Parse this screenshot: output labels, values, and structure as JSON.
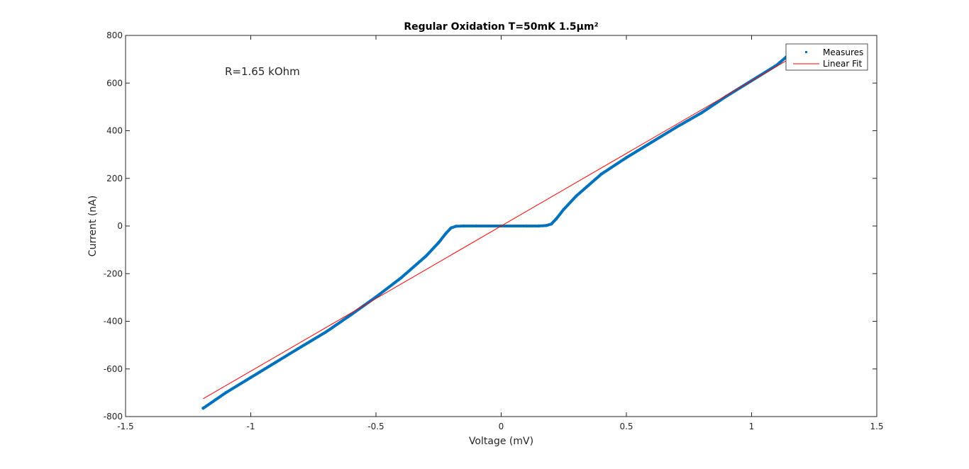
{
  "chart_data": {
    "type": "scatter",
    "title": "Regular Oxidation T=50mK 1.5µm²",
    "xlabel": "Voltage (mV)",
    "ylabel": "Current (nA)",
    "xlim": [
      -1.5,
      1.5
    ],
    "ylim": [
      -800,
      800
    ],
    "xticks": [
      -1.5,
      -1,
      -0.5,
      0,
      0.5,
      1,
      1.5
    ],
    "xtick_labels": [
      "-1.5",
      "-1",
      "-0.5",
      "0",
      "0.5",
      "1",
      "1.5"
    ],
    "yticks": [
      -800,
      -600,
      -400,
      -200,
      0,
      200,
      400,
      600,
      800
    ],
    "ytick_labels": [
      "-800",
      "-600",
      "-400",
      "-200",
      "0",
      "200",
      "400",
      "600",
      "800"
    ],
    "grid": false,
    "legend_position": "top-right",
    "annotation": "R=1.65 kOhm",
    "series": [
      {
        "name": "Measures",
        "style": "markers",
        "color": "#0072BD",
        "x": [
          -1.19,
          -1.1,
          -1.0,
          -0.9,
          -0.8,
          -0.7,
          -0.6,
          -0.5,
          -0.4,
          -0.3,
          -0.25,
          -0.22,
          -0.2,
          -0.18,
          -0.15,
          -0.1,
          0.0,
          0.1,
          0.15,
          0.18,
          0.2,
          0.22,
          0.25,
          0.3,
          0.4,
          0.5,
          0.6,
          0.7,
          0.8,
          0.9,
          1.0,
          1.1,
          1.15
        ],
        "y": [
          -765,
          -700,
          -636,
          -572,
          -508,
          -445,
          -373,
          -298,
          -218,
          -126,
          -70,
          -30,
          -8,
          -1,
          0,
          0,
          0,
          0,
          0,
          2,
          8,
          30,
          70,
          126,
          218,
          287,
          351,
          415,
          475,
          545,
          610,
          675,
          720
        ]
      },
      {
        "name": "Linear Fit",
        "style": "line",
        "color": "#FF0000",
        "x": [
          -1.19,
          1.19
        ],
        "y": [
          -725,
          725
        ]
      }
    ]
  }
}
